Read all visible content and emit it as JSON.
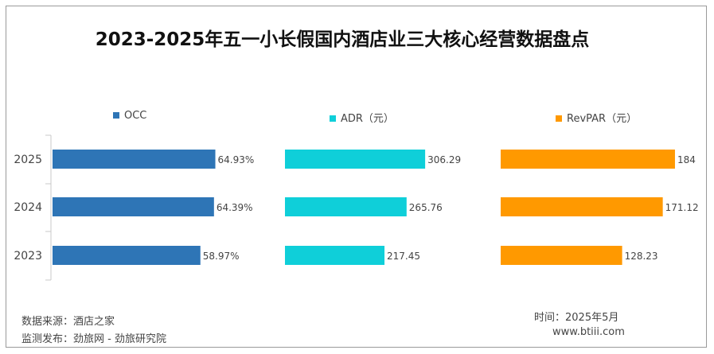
{
  "title": "2023-2025年五一小长假国内酒店业三大核心经营数据盘点",
  "colors": {
    "occ": "#2e75b6",
    "adr": "#0fcfd9",
    "revpar": "#ff9900",
    "axis": "#c8c8c8",
    "text": "#444444"
  },
  "chart_data": [
    {
      "type": "bar",
      "orientation": "horizontal",
      "categories": [
        "2025",
        "2024",
        "2023"
      ],
      "series": [
        {
          "name": "OCC",
          "values": [
            64.93,
            64.39,
            58.97
          ]
        }
      ],
      "value_labels": [
        "64.93%",
        "64.39%",
        "58.97%"
      ],
      "unit": "%",
      "legend_label": "OCC"
    },
    {
      "type": "bar",
      "orientation": "horizontal",
      "categories": [
        "2025",
        "2024",
        "2023"
      ],
      "series": [
        {
          "name": "ADR（元）",
          "values": [
            306.29,
            265.76,
            217.45
          ]
        }
      ],
      "value_labels": [
        "306.29",
        "265.76",
        "217.45"
      ],
      "legend_label": "ADR（元）"
    },
    {
      "type": "bar",
      "orientation": "horizontal",
      "categories": [
        "2025",
        "2024",
        "2023"
      ],
      "series": [
        {
          "name": "RevPAR（元）",
          "values": [
            184,
            171.12,
            128.23
          ]
        }
      ],
      "value_labels": [
        "184",
        "171.12",
        "128.23"
      ],
      "legend_label": "RevPAR（元）"
    }
  ],
  "footer": {
    "source": "数据来源：酒店之家",
    "publisher": "监测发布：劲旅网 - 劲旅研究院",
    "date": "时间：2025年5月",
    "website": "www.btiii.com"
  }
}
